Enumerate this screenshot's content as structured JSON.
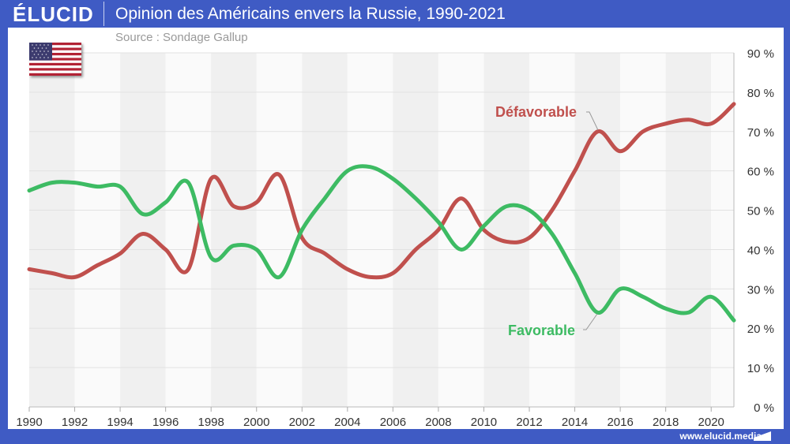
{
  "header": {
    "logo": "ÉLUCID",
    "title": "Opinion des Américains envers la Russie, 1990-2021"
  },
  "source": "Source : Sondage Gallup",
  "footer": "www.elucid.media",
  "flag_icon": "us-flag-icon",
  "colors": {
    "frame": "#3f5bc4",
    "favorable": "#3dbb63",
    "defavorable": "#c0504d"
  },
  "chart_data": {
    "type": "line",
    "title": "Opinion des Américains envers la Russie, 1990-2021",
    "xlabel": "",
    "ylabel": "",
    "x": [
      1990,
      1991,
      1992,
      1993,
      1994,
      1995,
      1996,
      1997,
      1998,
      1999,
      2000,
      2001,
      2002,
      2003,
      2004,
      2005,
      2006,
      2007,
      2008,
      2009,
      2010,
      2011,
      2012,
      2013,
      2014,
      2015,
      2016,
      2017,
      2018,
      2019,
      2020,
      2021
    ],
    "xlim": [
      1990,
      2021
    ],
    "ylim": [
      0,
      90
    ],
    "xticks": [
      "1990",
      "1992",
      "1994",
      "1996",
      "1998",
      "2000",
      "2002",
      "2004",
      "2006",
      "2008",
      "2010",
      "2012",
      "2014",
      "2016",
      "2018",
      "2020"
    ],
    "yticks": [
      "0 %",
      "10 %",
      "20 %",
      "30 %",
      "40 %",
      "50 %",
      "60 %",
      "70 %",
      "80 %",
      "90 %"
    ],
    "grid": true,
    "series": [
      {
        "name": "Défavorable",
        "color": "#c0504d",
        "values": [
          35,
          34,
          33,
          36,
          39,
          44,
          40,
          35,
          58,
          51,
          52,
          59,
          43,
          39,
          35,
          33,
          34,
          40,
          45,
          53,
          45,
          42,
          43,
          50,
          60,
          70,
          65,
          70,
          72,
          73,
          72,
          77
        ]
      },
      {
        "name": "Favorable",
        "color": "#3dbb63",
        "values": [
          55,
          57,
          57,
          56,
          56,
          49,
          52,
          57,
          38,
          41,
          40,
          33,
          45,
          53,
          60,
          61,
          58,
          53,
          47,
          40,
          46,
          51,
          50,
          44,
          34,
          24,
          30,
          28,
          25,
          24,
          28,
          22
        ]
      }
    ]
  }
}
